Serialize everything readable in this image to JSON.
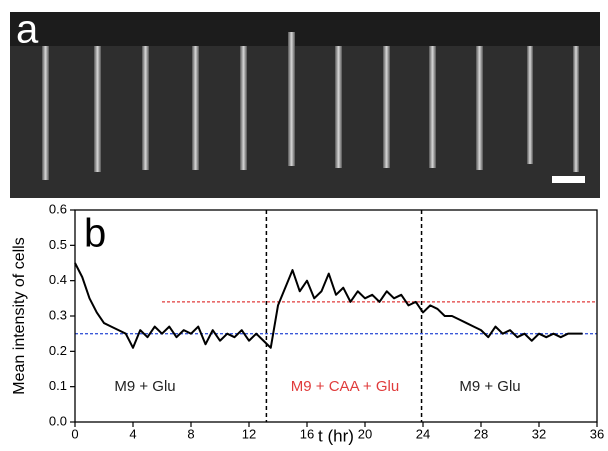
{
  "image_label": "a",
  "chart_data": {
    "type": "line",
    "panel_label": "b",
    "xlabel": "t (hr)",
    "ylabel": "Mean intensity of cells",
    "xlim": [
      0,
      36
    ],
    "xticks": [
      0,
      4,
      8,
      12,
      16,
      20,
      24,
      28,
      32,
      36
    ],
    "ylim": [
      0,
      0.6
    ],
    "yticks": [
      {
        "value": 0,
        "label": "0.0"
      },
      0.1,
      0.2,
      0.3,
      0.4,
      0.5,
      0.6
    ],
    "x": [
      0,
      0.5,
      1,
      1.5,
      2,
      2.5,
      3,
      3.5,
      4,
      4.5,
      5,
      5.5,
      6,
      6.5,
      7,
      7.5,
      8,
      8.5,
      9,
      9.5,
      10,
      10.5,
      11,
      11.5,
      12,
      12.5,
      13,
      13.5,
      14,
      14.5,
      15,
      15.5,
      16,
      16.5,
      17,
      17.5,
      18,
      18.5,
      19,
      19.5,
      20,
      20.5,
      21,
      21.5,
      22,
      22.5,
      23,
      23.5,
      24,
      24.5,
      25,
      25.5,
      26,
      26.5,
      27,
      27.5,
      28,
      28.5,
      29,
      29.5,
      30,
      30.5,
      31,
      31.5,
      32,
      32.5,
      33,
      33.5,
      34,
      34.5,
      35
    ],
    "series": [
      {
        "color": "#000000",
        "values": [
          0.45,
          0.41,
          0.35,
          0.31,
          0.28,
          0.27,
          0.26,
          0.25,
          0.21,
          0.26,
          0.24,
          0.27,
          0.25,
          0.27,
          0.24,
          0.26,
          0.25,
          0.27,
          0.22,
          0.26,
          0.23,
          0.25,
          0.24,
          0.26,
          0.23,
          0.25,
          0.23,
          0.21,
          0.33,
          0.38,
          0.43,
          0.37,
          0.4,
          0.35,
          0.37,
          0.42,
          0.36,
          0.38,
          0.34,
          0.37,
          0.35,
          0.36,
          0.34,
          0.37,
          0.35,
          0.36,
          0.33,
          0.34,
          0.31,
          0.33,
          0.32,
          0.3,
          0.3,
          0.29,
          0.28,
          0.27,
          0.26,
          0.24,
          0.27,
          0.25,
          0.26,
          0.24,
          0.25,
          0.23,
          0.25,
          0.24,
          0.25,
          0.24,
          0.25,
          0.25,
          0.25
        ]
      }
    ],
    "hlines": [
      {
        "y": 0.34,
        "x": [
          6,
          36
        ],
        "color": "#e03c3c"
      },
      {
        "y": 0.25,
        "x": [
          0,
          36
        ],
        "color": "#3c5ad8"
      }
    ],
    "vlines": [
      13.2,
      23.9
    ],
    "annotations": [
      {
        "text": "M9 + Glu",
        "color": "#222222"
      },
      {
        "text": "M9 + CAA + Glu",
        "color": "#e03c3c"
      },
      {
        "text": "M9 + Glu",
        "color": "#222222"
      }
    ]
  }
}
